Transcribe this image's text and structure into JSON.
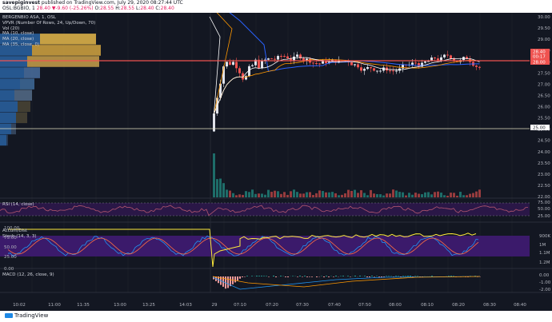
{
  "header": {
    "publisher_name": "savepiginvest",
    "published_text": "published on TradingView.com, July 29, 2020 08:27:44 UTC",
    "symbol": "OSL:BGBIO, 1",
    "ohlc": {
      "current": "28.40",
      "change": "▼-9.60 (-25.26%)",
      "o": "O:",
      "o_val": "28.55",
      "h": "H:",
      "h_val": "28.55",
      "l": "L:",
      "l_val": "28.40",
      "c": "C:",
      "c_val": "28.40"
    }
  },
  "legend": {
    "title": "BERGENBIO ASA, 1, OSL",
    "items": [
      "VPVR (Number Of Rows, 24, Up/Down, 70)",
      "Vol (20)",
      "MA (10, close)",
      "MA (20, close)",
      "MA (35, close, 0)"
    ]
  },
  "indicators": {
    "rsi": "RSI (14, close)",
    "accum": "Accum/Dist",
    "stoch": "Stoch (14, 3, 3)",
    "macd": "MACD (12, 26, close, 9)"
  },
  "price_axis": [
    "30.00",
    "29.50",
    "29.00",
    "28.50",
    "28.00",
    "27.50",
    "27.00",
    "26.50",
    "26.00",
    "25.50",
    "25.00",
    "24.50",
    "24.00",
    "23.50",
    "23.00",
    "22.50",
    "22.00"
  ],
  "price_badges": [
    {
      "value": "28.40",
      "color": "#ef5350"
    },
    {
      "value": "00:17",
      "color": "#ef5350"
    },
    {
      "value": "28.00",
      "color": "#ef5350"
    },
    {
      "value": "25.00",
      "color": "#ffffff"
    }
  ],
  "rsi_axis": [
    "75.00",
    "50.00",
    "25.00"
  ],
  "stoch_axis_left": [
    "100.00",
    "75.00",
    "50.00",
    "25.00",
    "0.00"
  ],
  "stoch_axis_right": [
    "900K",
    "1M",
    "1.1M",
    "1.2M"
  ],
  "macd_axis": [
    "0.00",
    "-1.00",
    "-2.00"
  ],
  "time_axis": [
    "10:02",
    "11:00",
    "11:35",
    "13:00",
    "13:25",
    "14:03",
    "29",
    "07:10",
    "07:20",
    "07:30",
    "07:40",
    "07:50",
    "08:00",
    "08:10",
    "08:20",
    "08:30",
    "08:40"
  ],
  "footer": {
    "brand": "TradingView"
  },
  "colors": {
    "background": "#131722",
    "up": "#26a69a",
    "down": "#ef5350",
    "ma10": "#ffffff",
    "ma20": "#ff9800",
    "ma35": "#2962ff",
    "purple": "#4a148c"
  }
}
